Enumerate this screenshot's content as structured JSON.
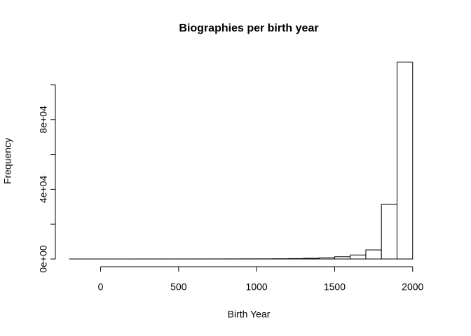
{
  "chart_data": {
    "type": "histogram",
    "title": "Biographies per birth year",
    "x_label": "Birth Year",
    "y_label": "Frequency",
    "bins": [
      -200,
      -100,
      0,
      100,
      200,
      300,
      400,
      500,
      600,
      700,
      800,
      900,
      1000,
      1100,
      1200,
      1300,
      1400,
      1500,
      1600,
      1700,
      1800,
      1900,
      2000,
      2100
    ],
    "values": [
      5,
      5,
      10,
      10,
      15,
      20,
      25,
      30,
      40,
      50,
      60,
      80,
      100,
      150,
      250,
      400,
      700,
      1300,
      2300,
      5200,
      31300,
      112900,
      0
    ],
    "color": "#ffffff",
    "xlim": [
      -200,
      2100
    ],
    "xticks": [
      0,
      500,
      1000,
      1500,
      2000
    ],
    "ylim": [
      0,
      113000
    ],
    "yticks": [
      {
        "value": 0,
        "label": "0e+00"
      },
      {
        "value": 20000,
        "label": null
      },
      {
        "value": 40000,
        "label": "4e+04"
      },
      {
        "value": 60000,
        "label": null
      },
      {
        "value": 80000,
        "label": "8e+04"
      },
      {
        "value": 100000,
        "label": null
      }
    ]
  }
}
